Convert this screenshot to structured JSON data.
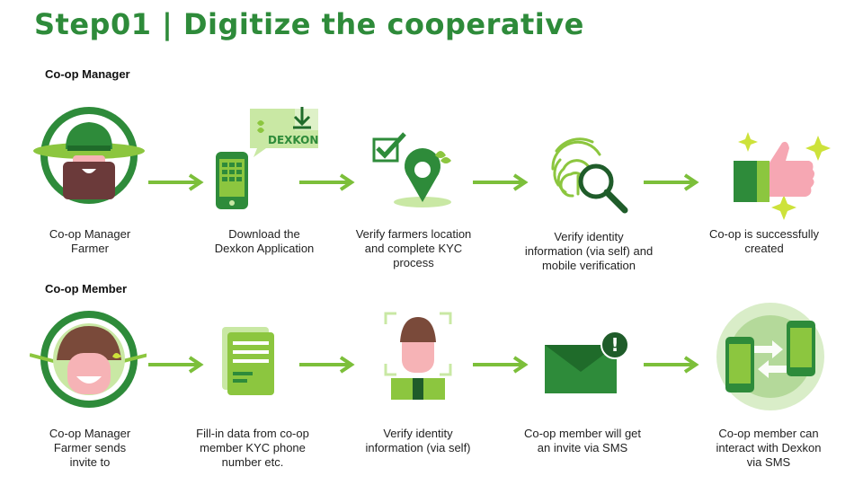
{
  "title": "Step01 | Digitize the cooperative",
  "colors": {
    "accent": "#2e8b3a",
    "arrow": "#7cbf3a",
    "light_green": "#8cc63f",
    "dark_green": "#1f7a33"
  },
  "rows": [
    {
      "heading": "Co-op Manager",
      "steps": [
        {
          "icon": "farmer-hat-icon",
          "caption": "Co-op Manager\nFarmer"
        },
        {
          "icon": "phone-download-icon",
          "caption": "Download the\nDexkon Application",
          "badge": "DEXKON"
        },
        {
          "icon": "location-check-icon",
          "caption": "Verify farmers location\nand complete KYC\nprocess"
        },
        {
          "icon": "fingerprint-search-icon",
          "caption": "Verify identity\ninformation (via self) and\nmobile verification"
        },
        {
          "icon": "thumbs-up-icon",
          "caption": "Co-op is successfully\ncreated"
        }
      ]
    },
    {
      "heading": "Co-op Member",
      "steps": [
        {
          "icon": "farmer-face-icon",
          "caption": "Co-op Manager\nFarmer sends\ninvite to"
        },
        {
          "icon": "document-form-icon",
          "caption": "Fill-in data from co-op\nmember KYC phone\nnumber etc."
        },
        {
          "icon": "face-scan-icon",
          "caption": "Verify identity\ninformation (via self)"
        },
        {
          "icon": "envelope-alert-icon",
          "caption": "Co-op member will get\nan invite via SMS",
          "badge": "!"
        },
        {
          "icon": "phones-exchange-icon",
          "caption": "Co-op member can\ninteract with Dexkon\nvia SMS"
        }
      ]
    }
  ]
}
